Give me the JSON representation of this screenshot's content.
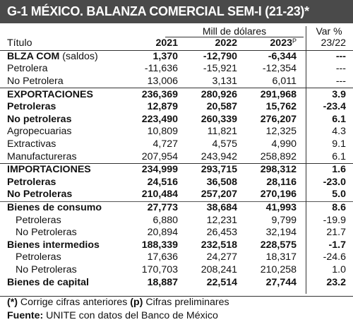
{
  "title": "G-1 MÉXICO. BALANZA COMERCIAL SEM-I (21-23)*",
  "header": {
    "units": "Mill de dólares",
    "var_label": "Var %",
    "col_title": "Título",
    "years": [
      "2021",
      "2022",
      "2023"
    ],
    "prelim_mark": "P",
    "var_period": "23/22"
  },
  "rows": [
    {
      "label": "BLZA COM",
      "label_suffix": " (saldos)",
      "v": [
        "1,370",
        "-12,790",
        "-6,344"
      ],
      "var": "---",
      "style": "bold"
    },
    {
      "label": "Petrolera",
      "v": [
        "-11,636",
        "-15,921",
        "-12,354"
      ],
      "var": "---",
      "style": "normal"
    },
    {
      "label": "No Petrolera",
      "v": [
        "13,006",
        "3,131",
        "6,011"
      ],
      "var": "---",
      "style": "normal"
    },
    {
      "label": "EXPORTACIONES",
      "v": [
        "236,369",
        "280,926",
        "291,968"
      ],
      "var": "3.9",
      "style": "bold"
    },
    {
      "label": "Petroleras",
      "v": [
        "12,879",
        "20,587",
        "15,762"
      ],
      "var": "-23.4",
      "style": "bold"
    },
    {
      "label": "No petroleras",
      "v": [
        "223,490",
        "260,339",
        "276,207"
      ],
      "var": "6.1",
      "style": "bold"
    },
    {
      "label": "Agropecuarias",
      "v": [
        "10,809",
        "11,821",
        "12,325"
      ],
      "var": "4.3",
      "style": "normal"
    },
    {
      "label": "Extractivas",
      "v": [
        "4,727",
        "4,575",
        "4,990"
      ],
      "var": "9.1",
      "style": "normal"
    },
    {
      "label": "Manufactureras",
      "v": [
        "207,954",
        "243,942",
        "258,892"
      ],
      "var": "6.1",
      "style": "normal"
    },
    {
      "label": "IMPORTACIONES",
      "v": [
        "234,999",
        "293,715",
        "298,312"
      ],
      "var": "1.6",
      "style": "bold"
    },
    {
      "label": "Petroleras",
      "v": [
        "24,516",
        "36,508",
        "28,116"
      ],
      "var": "-23.0",
      "style": "bold"
    },
    {
      "label": "No Petroleras",
      "v": [
        "210,484",
        "257,207",
        "270,196"
      ],
      "var": "5.0",
      "style": "bold"
    },
    {
      "label": "Bienes de consumo",
      "v": [
        "27,773",
        "38,684",
        "41,993"
      ],
      "var": "8.6",
      "style": "bold"
    },
    {
      "label": "Petroleras",
      "v": [
        "6,880",
        "12,231",
        "9,799"
      ],
      "var": "-19.9",
      "style": "indent"
    },
    {
      "label": "No Petroleras",
      "v": [
        "20,894",
        "26,453",
        "32,194"
      ],
      "var": "21.7",
      "style": "indent"
    },
    {
      "label": "Bienes intermedios",
      "v": [
        "188,339",
        "232,518",
        "228,575"
      ],
      "var": "-1.7",
      "style": "bold"
    },
    {
      "label": "Petroleras",
      "v": [
        "17,636",
        "24,277",
        "18,317"
      ],
      "var": "-24.6",
      "style": "indent"
    },
    {
      "label": "No Petroleras",
      "v": [
        "170,703",
        "208,241",
        "210,258"
      ],
      "var": "1.0",
      "style": "indent"
    },
    {
      "label": "Bienes de capital",
      "v": [
        "18,887",
        "22,514",
        "27,744"
      ],
      "var": "23.2",
      "style": "bold"
    }
  ],
  "footer": {
    "note_mark1": "(*)",
    "note_text1": " Corrige cifras anteriores ",
    "note_mark2": "(p)",
    "note_text2": " Cifras preliminares",
    "source_label": "Fuente:",
    "source_text": " UNITE con datos del Banco de México"
  }
}
